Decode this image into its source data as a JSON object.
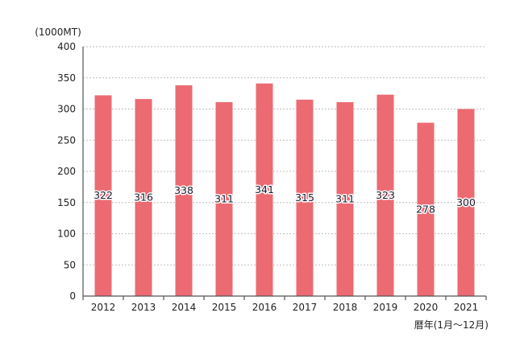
{
  "chart_data": {
    "type": "bar",
    "categories": [
      "2012",
      "2013",
      "2014",
      "2015",
      "2016",
      "2017",
      "2018",
      "2019",
      "2020",
      "2021"
    ],
    "values": [
      322,
      316,
      338,
      311,
      341,
      315,
      311,
      323,
      278,
      300
    ],
    "data_labels": [
      "322",
      "316",
      "338",
      "311",
      "341",
      "315",
      "311",
      "323",
      "278",
      "300"
    ],
    "ylabel": "(1000MT)",
    "xlabel": "暦年(1月〜12月)",
    "ylim": [
      0,
      400
    ],
    "yticks": [
      0,
      50,
      100,
      150,
      200,
      250,
      300,
      350,
      400
    ],
    "grid": true,
    "bar_color": "#ec6a72",
    "label_color": "#1a1a2e"
  }
}
